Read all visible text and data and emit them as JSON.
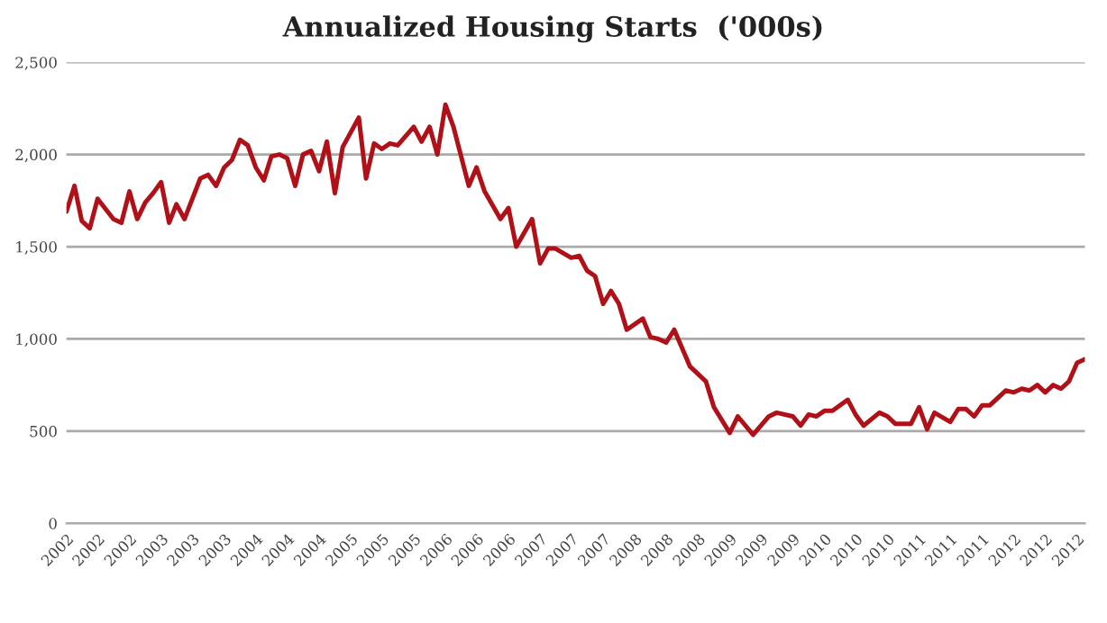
{
  "chart_data": {
    "type": "line",
    "title": "Annualized Housing Starts  ('000s)",
    "x": [
      "2002-01",
      "2002-02",
      "2002-03",
      "2002-04",
      "2002-05",
      "2002-07",
      "2002-08",
      "2002-09",
      "2002-10",
      "2002-11",
      "2002-12",
      "2003-01",
      "2003-02",
      "2003-03",
      "2003-04",
      "2003-06",
      "2003-07",
      "2003-08",
      "2003-09",
      "2003-10",
      "2003-11",
      "2003-12",
      "2004-01",
      "2004-02",
      "2004-03",
      "2004-04",
      "2004-05",
      "2004-06",
      "2004-07",
      "2004-08",
      "2004-09",
      "2004-10",
      "2004-11",
      "2004-12",
      "2005-02",
      "2005-03",
      "2005-04",
      "2005-05",
      "2005-06",
      "2005-07",
      "2005-08",
      "2005-09",
      "2005-10",
      "2005-11",
      "2005-12",
      "2006-01",
      "2006-02",
      "2006-04",
      "2006-05",
      "2006-06",
      "2006-08",
      "2006-09",
      "2006-10",
      "2006-12",
      "2007-01",
      "2007-02",
      "2007-03",
      "2007-05",
      "2007-06",
      "2007-07",
      "2007-08",
      "2007-09",
      "2007-10",
      "2007-11",
      "2007-12",
      "2008-02",
      "2008-03",
      "2008-04",
      "2008-05",
      "2008-06",
      "2008-08",
      "2008-10",
      "2008-11",
      "2009-01",
      "2009-02",
      "2009-04",
      "2009-06",
      "2009-07",
      "2009-09",
      "2009-10",
      "2009-11",
      "2009-12",
      "2010-01",
      "2010-02",
      "2010-04",
      "2010-05",
      "2010-06",
      "2010-08",
      "2010-09",
      "2010-10",
      "2010-12",
      "2011-01",
      "2011-02",
      "2011-03",
      "2011-05",
      "2011-06",
      "2011-07",
      "2011-08",
      "2011-09",
      "2011-10",
      "2011-12",
      "2012-01",
      "2012-02",
      "2012-03",
      "2012-04",
      "2012-05",
      "2012-06",
      "2012-07",
      "2012-08",
      "2012-09",
      "2012-10"
    ],
    "series": [
      {
        "color": "#b01018",
        "values": [
          1690,
          1830,
          1640,
          1600,
          1760,
          1650,
          1630,
          1800,
          1650,
          1740,
          1790,
          1850,
          1630,
          1730,
          1650,
          1870,
          1890,
          1830,
          1930,
          1970,
          2080,
          2050,
          1930,
          1860,
          1990,
          2000,
          1980,
          1830,
          2000,
          2020,
          1910,
          2070,
          1790,
          2040,
          2200,
          1870,
          2060,
          2030,
          2060,
          2050,
          2100,
          2150,
          2070,
          2150,
          2000,
          2270,
          2150,
          1830,
          1930,
          1800,
          1650,
          1710,
          1500,
          1650,
          1410,
          1490,
          1490,
          1440,
          1450,
          1370,
          1340,
          1190,
          1260,
          1190,
          1050,
          1110,
          1010,
          1000,
          980,
          1050,
          850,
          770,
          630,
          490,
          580,
          480,
          580,
          600,
          580,
          530,
          590,
          580,
          610,
          610,
          670,
          590,
          530,
          600,
          580,
          540,
          540,
          630,
          510,
          600,
          550,
          620,
          620,
          580,
          640,
          640,
          720,
          710,
          730,
          720,
          750,
          710,
          750,
          730,
          770,
          870,
          890
        ]
      }
    ],
    "xlim": [
      "2002-01",
      "2012-10"
    ],
    "xticks": [
      {
        "value": "2002-01",
        "label": "2002"
      },
      {
        "value": "2002-05",
        "label": "2002"
      },
      {
        "value": "2002-09",
        "label": "2002"
      },
      {
        "value": "2003-01",
        "label": "2003"
      },
      {
        "value": "2003-05",
        "label": "2003"
      },
      {
        "value": "2003-09",
        "label": "2003"
      },
      {
        "value": "2004-01",
        "label": "2004"
      },
      {
        "value": "2004-05",
        "label": "2004"
      },
      {
        "value": "2004-09",
        "label": "2004"
      },
      {
        "value": "2005-01",
        "label": "2005"
      },
      {
        "value": "2005-05",
        "label": "2005"
      },
      {
        "value": "2005-09",
        "label": "2005"
      },
      {
        "value": "2006-01",
        "label": "2006"
      },
      {
        "value": "2006-05",
        "label": "2006"
      },
      {
        "value": "2006-09",
        "label": "2006"
      },
      {
        "value": "2007-01",
        "label": "2007"
      },
      {
        "value": "2007-05",
        "label": "2007"
      },
      {
        "value": "2007-09",
        "label": "2007"
      },
      {
        "value": "2008-01",
        "label": "2008"
      },
      {
        "value": "2008-05",
        "label": "2008"
      },
      {
        "value": "2008-09",
        "label": "2008"
      },
      {
        "value": "2009-01",
        "label": "2009"
      },
      {
        "value": "2009-05",
        "label": "2009"
      },
      {
        "value": "2009-09",
        "label": "2009"
      },
      {
        "value": "2010-01",
        "label": "2010"
      },
      {
        "value": "2010-05",
        "label": "2010"
      },
      {
        "value": "2010-09",
        "label": "2010"
      },
      {
        "value": "2011-01",
        "label": "2011"
      },
      {
        "value": "2011-05",
        "label": "2011"
      },
      {
        "value": "2011-09",
        "label": "2011"
      },
      {
        "value": "2012-01",
        "label": "2012"
      },
      {
        "value": "2012-05",
        "label": "2012"
      },
      {
        "value": "2012-09",
        "label": "2012"
      }
    ],
    "ylim": [
      0,
      2500
    ],
    "yticks": [
      0,
      {
        "value": 500,
        "label": "500"
      },
      {
        "value": 1000,
        "label": "1,000"
      },
      {
        "value": 1500,
        "label": "1,500"
      },
      {
        "value": 2000,
        "label": "2,000"
      },
      {
        "value": 2500,
        "label": "2,500"
      }
    ],
    "grid": "y",
    "marker": "none",
    "line_style": "solid"
  }
}
